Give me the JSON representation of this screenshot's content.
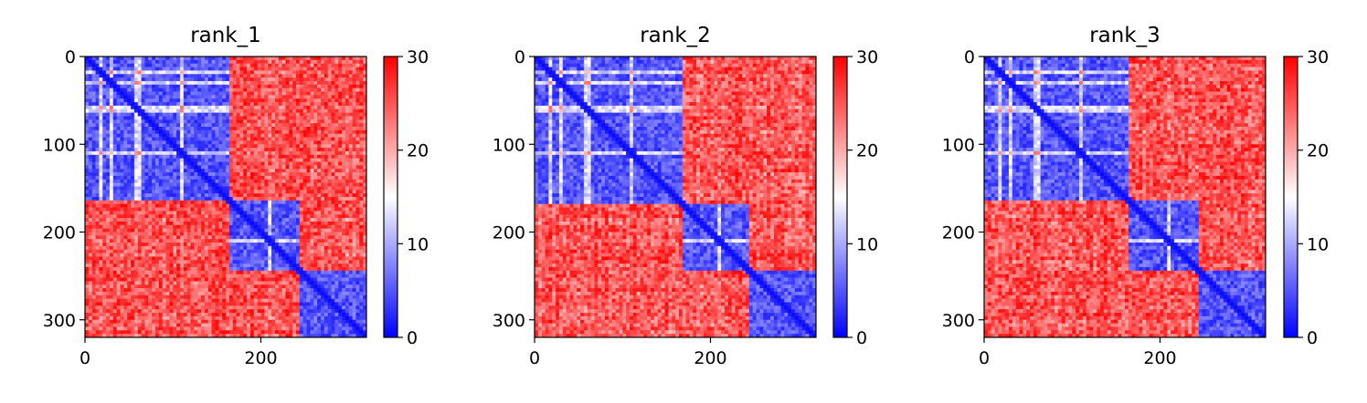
{
  "chart_data": [
    {
      "type": "heatmap",
      "title": "rank_1",
      "xlabel": "",
      "ylabel": "",
      "xlim": [
        0,
        320
      ],
      "ylim": [
        320,
        0
      ],
      "x_ticks": [
        0,
        200
      ],
      "y_ticks": [
        0,
        100,
        200,
        300
      ],
      "colorbar": {
        "range": [
          0,
          30
        ],
        "ticks": [
          0,
          10,
          20,
          30
        ],
        "colormap": "bwr"
      },
      "grid": false,
      "domains": [
        [
          0,
          165
        ],
        [
          165,
          245
        ],
        [
          245,
          320
        ]
      ],
      "subdomain_breaks": [
        18,
        30,
        60,
        110,
        210
      ]
    },
    {
      "type": "heatmap",
      "title": "rank_2",
      "xlabel": "",
      "ylabel": "",
      "xlim": [
        0,
        320
      ],
      "ylim": [
        320,
        0
      ],
      "x_ticks": [
        0,
        200
      ],
      "y_ticks": [
        0,
        100,
        200,
        300
      ],
      "colorbar": {
        "range": [
          0,
          30
        ],
        "ticks": [
          0,
          10,
          20,
          30
        ],
        "colormap": "bwr"
      },
      "grid": false,
      "domains": [
        [
          0,
          170
        ],
        [
          170,
          245
        ],
        [
          245,
          320
        ]
      ],
      "subdomain_breaks": [
        18,
        30,
        60,
        110,
        210
      ]
    },
    {
      "type": "heatmap",
      "title": "rank_3",
      "xlabel": "",
      "ylabel": "",
      "xlim": [
        0,
        320
      ],
      "ylim": [
        320,
        0
      ],
      "x_ticks": [
        0,
        200
      ],
      "y_ticks": [
        0,
        100,
        200,
        300
      ],
      "colorbar": {
        "range": [
          0,
          30
        ],
        "ticks": [
          0,
          10,
          20,
          30
        ],
        "colormap": "bwr"
      },
      "grid": false,
      "domains": [
        [
          0,
          165
        ],
        [
          165,
          245
        ],
        [
          245,
          320
        ]
      ],
      "subdomain_breaks": [
        18,
        30,
        60,
        110,
        210
      ]
    }
  ],
  "colors": {
    "low": "#0000ff",
    "mid": "#ffffff",
    "high": "#ff0000",
    "axis": "#000000"
  }
}
